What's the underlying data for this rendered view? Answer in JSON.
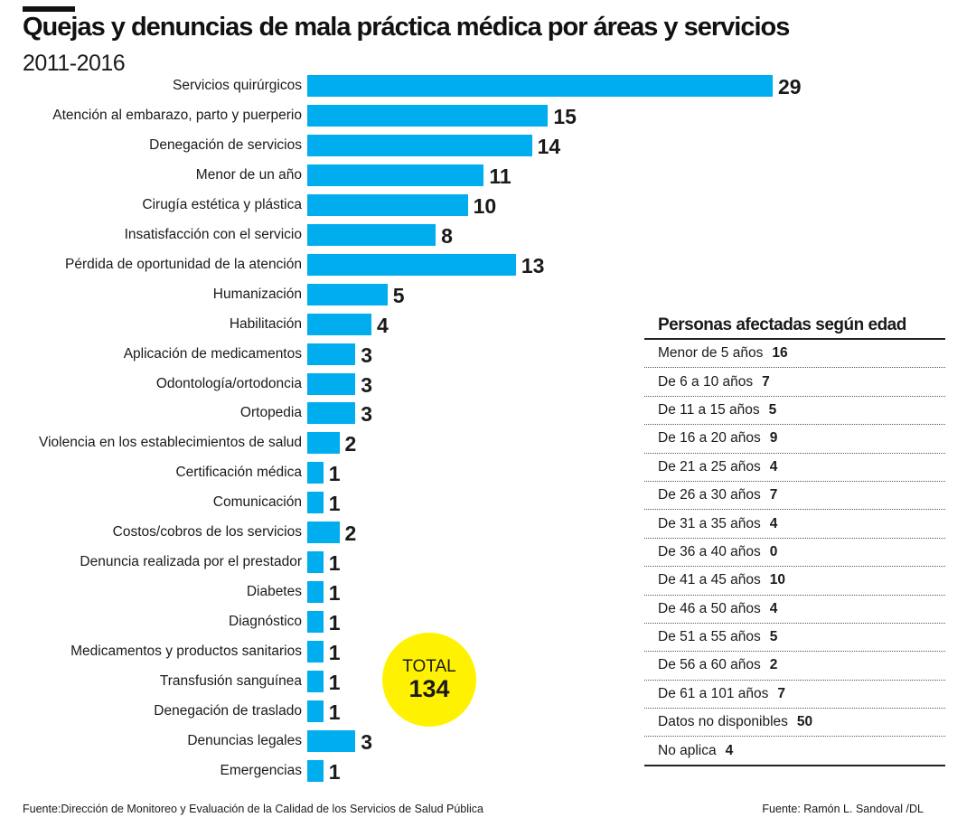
{
  "colors": {
    "bar": "#00aeef",
    "total_circle": "#fff200",
    "text": "#1a1a1a"
  },
  "chart_data": {
    "type": "bar",
    "orientation": "horizontal",
    "title": "Quejas y denuncias de mala práctica médica por áreas y servicios",
    "subtitle": "2011-2016",
    "categories": [
      "Servicios quirúrgicos",
      "Atención al embarazo, parto y puerperio",
      "Denegación de servicios",
      "Menor de un año",
      "Cirugía estética y plástica",
      "Insatisfacción con el servicio",
      "Pérdida de oportunidad de la atención",
      "Humanización",
      "Habilitación",
      "Aplicación de medicamentos",
      "Odontología/ortodoncia",
      "Ortopedia",
      "Violencia en los establecimientos de salud",
      "Certificación médica",
      "Comunicación",
      "Costos/cobros de los servicios",
      "Denuncia realizada por el prestador",
      "Diabetes",
      "Diagnóstico",
      "Medicamentos y productos sanitarios",
      "Transfusión sanguínea",
      "Denegación de traslado",
      "Denuncias legales",
      "Emergencias"
    ],
    "values": [
      29,
      15,
      14,
      11,
      10,
      8,
      13,
      5,
      4,
      3,
      3,
      3,
      2,
      1,
      1,
      2,
      1,
      1,
      1,
      1,
      1,
      1,
      3,
      1
    ],
    "xlim": [
      0,
      29
    ],
    "grid": false,
    "data_labels": true
  },
  "total": {
    "label": "TOTAL",
    "value": "134"
  },
  "age_table": {
    "title": "Personas afectadas según edad",
    "rows": [
      {
        "label": "Menor de 5 años",
        "value": "16"
      },
      {
        "label": "De 6 a 10 años",
        "value": "7"
      },
      {
        "label": "De 11 a 15 años",
        "value": "5"
      },
      {
        "label": "De 16 a 20 años",
        "value": "9"
      },
      {
        "label": "De 21 a 25 años",
        "value": "4"
      },
      {
        "label": "De 26 a 30 años",
        "value": "7"
      },
      {
        "label": "De 31 a 35 años",
        "value": "4"
      },
      {
        "label": "De 36 a 40 años",
        "value": "0"
      },
      {
        "label": "De 41 a 45 años",
        "value": "10"
      },
      {
        "label": "De 46 a 50 años",
        "value": "4"
      },
      {
        "label": "De 51 a 55 años",
        "value": "5"
      },
      {
        "label": "De 56 a 60 años",
        "value": "2"
      },
      {
        "label": "De 61 a 101 años",
        "value": "7"
      },
      {
        "label": "Datos no disponibles",
        "value": "50"
      },
      {
        "label": "No aplica",
        "value": "4"
      }
    ]
  },
  "footer": {
    "source": "Fuente:Dirección de Monitoreo y Evaluación de la Calidad de los Servicios de Salud Pública",
    "credit": "Fuente: Ramón L. Sandoval /DL"
  }
}
